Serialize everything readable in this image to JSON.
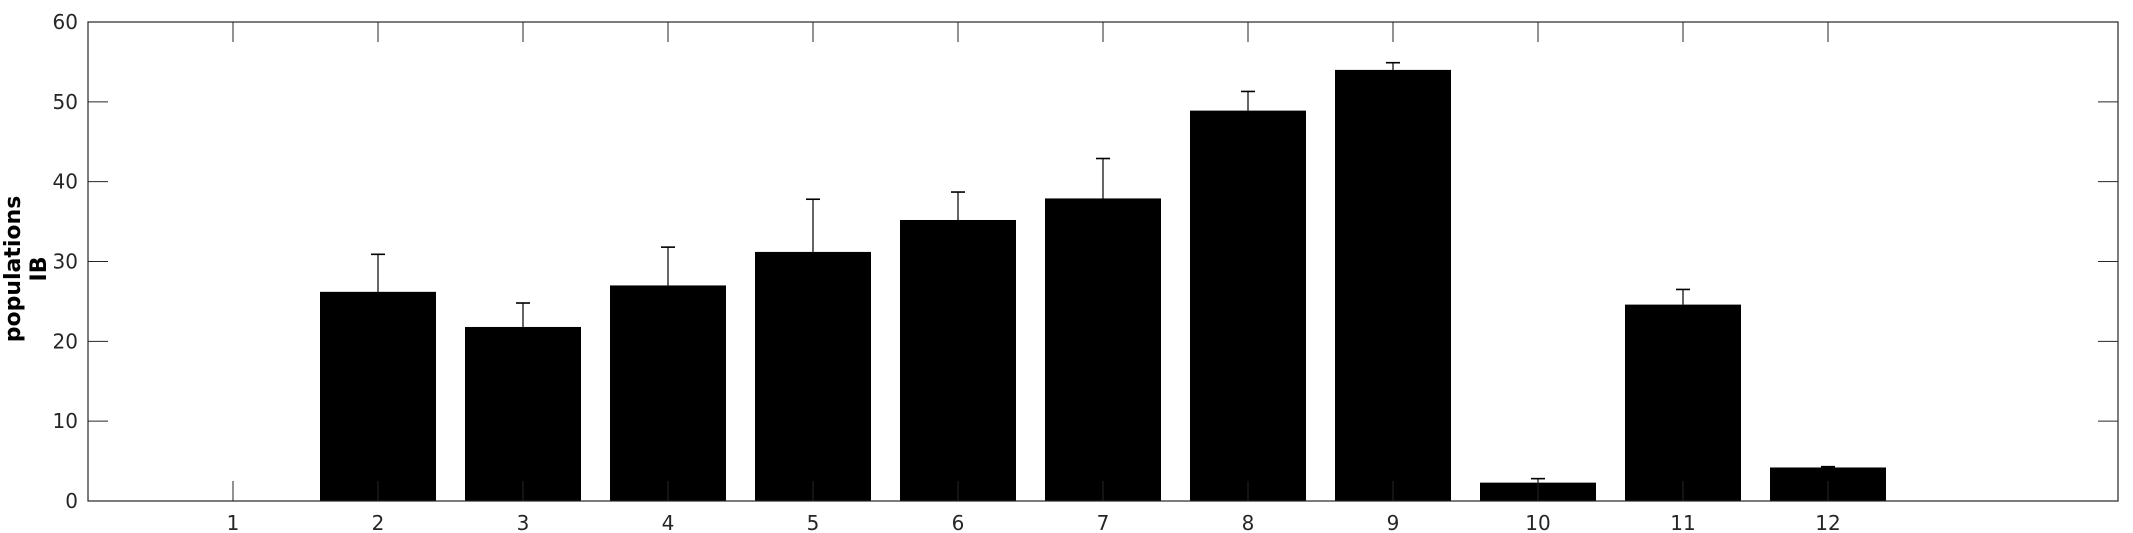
{
  "chart_data": {
    "type": "bar",
    "categories": [
      "1",
      "2",
      "3",
      "4",
      "5",
      "6",
      "7",
      "8",
      "9",
      "10",
      "11",
      "12"
    ],
    "values": [
      0,
      26.2,
      21.8,
      27.0,
      31.2,
      35.2,
      37.9,
      48.9,
      54.0,
      2.3,
      24.6,
      4.2
    ],
    "errors": [
      0,
      4.7,
      3.0,
      4.8,
      6.6,
      3.5,
      5.0,
      2.4,
      0.9,
      0.5,
      1.9,
      0.1
    ],
    "ylabel_lines": [
      "populations",
      "IB"
    ],
    "xlim": [
      0,
      14
    ],
    "ylim": [
      0,
      60
    ],
    "yticks": [
      "0",
      "10",
      "20",
      "30",
      "40",
      "50",
      "60"
    ],
    "bar_color": "#000000",
    "grid": false,
    "legend": "none"
  }
}
